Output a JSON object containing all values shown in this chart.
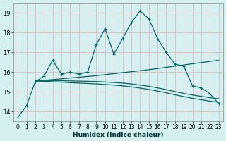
{
  "xlabel": "Humidex (Indice chaleur)",
  "bg_color": "#d4f0f0",
  "grid_color": "#c8e8e8",
  "line_color": "#006666",
  "xlim": [
    -0.5,
    23.5
  ],
  "ylim": [
    13.5,
    19.5
  ],
  "xticks": [
    0,
    1,
    2,
    3,
    4,
    5,
    6,
    7,
    8,
    9,
    10,
    11,
    12,
    13,
    14,
    15,
    16,
    17,
    18,
    19,
    20,
    21,
    22,
    23
  ],
  "yticks": [
    14,
    15,
    16,
    17,
    18,
    19
  ],
  "line1_x": [
    0,
    1,
    2,
    3,
    4,
    5,
    6,
    7,
    8,
    9,
    10,
    11,
    12,
    13,
    14,
    15,
    16,
    17,
    18,
    19,
    20,
    21,
    22,
    23
  ],
  "line1_y": [
    13.7,
    14.3,
    15.5,
    15.8,
    16.6,
    15.9,
    16.0,
    15.9,
    16.0,
    17.4,
    18.2,
    16.9,
    17.7,
    18.5,
    19.1,
    18.7,
    17.7,
    17.0,
    16.4,
    16.3,
    15.3,
    15.2,
    14.9,
    14.4
  ],
  "line2_x": [
    2,
    3,
    4,
    5,
    6,
    7,
    8,
    9,
    10,
    11,
    12,
    13,
    14,
    15,
    16,
    17,
    18,
    19,
    20,
    21,
    22,
    23
  ],
  "line2_y": [
    15.55,
    15.58,
    15.62,
    15.66,
    15.7,
    15.74,
    15.78,
    15.82,
    15.87,
    15.92,
    15.97,
    16.02,
    16.07,
    16.12,
    16.18,
    16.24,
    16.3,
    16.36,
    16.42,
    16.48,
    16.54,
    16.6
  ],
  "line3_x": [
    2,
    3,
    4,
    5,
    6,
    7,
    8,
    9,
    10,
    11,
    12,
    13,
    14,
    15,
    16,
    17,
    18,
    19,
    20,
    21,
    22,
    23
  ],
  "line3_y": [
    15.55,
    15.53,
    15.51,
    15.49,
    15.46,
    15.44,
    15.42,
    15.4,
    15.37,
    15.34,
    15.3,
    15.25,
    15.19,
    15.12,
    15.04,
    14.95,
    14.85,
    14.76,
    14.67,
    14.6,
    14.53,
    14.47
  ],
  "line4_x": [
    2,
    3,
    4,
    5,
    6,
    7,
    8,
    9,
    10,
    11,
    12,
    13,
    14,
    15,
    16,
    17,
    18,
    19,
    20,
    21,
    22,
    23
  ],
  "line4_y": [
    15.55,
    15.55,
    15.57,
    15.56,
    15.55,
    15.54,
    15.53,
    15.52,
    15.5,
    15.47,
    15.44,
    15.4,
    15.34,
    15.28,
    15.2,
    15.11,
    15.01,
    14.92,
    14.84,
    14.77,
    14.7,
    14.65
  ]
}
